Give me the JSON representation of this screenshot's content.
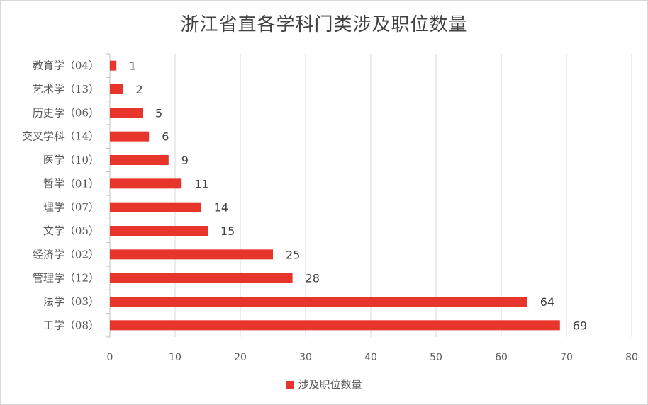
{
  "chart_data": {
    "type": "bar",
    "orientation": "horizontal",
    "title": "浙江省直各学科门类涉及职位数量",
    "categories": [
      "工学（08）",
      "法学（03）",
      "管理学（12）",
      "经济学（02）",
      "文学（05）",
      "理学（07）",
      "哲学（01）",
      "医学（10）",
      "交叉学科（14）",
      "历史学（06）",
      "艺术学（13）",
      "教育学（04）"
    ],
    "series": [
      {
        "name": "涉及职位数量",
        "values": [
          69,
          64,
          28,
          25,
          15,
          14,
          11,
          9,
          6,
          5,
          2,
          1
        ],
        "color": "#e8352b"
      }
    ],
    "xlim": [
      0,
      80
    ],
    "xticks": [
      0,
      10,
      20,
      30,
      40,
      50,
      60,
      70,
      80
    ],
    "grid": "vertical",
    "legend": "bottom"
  }
}
